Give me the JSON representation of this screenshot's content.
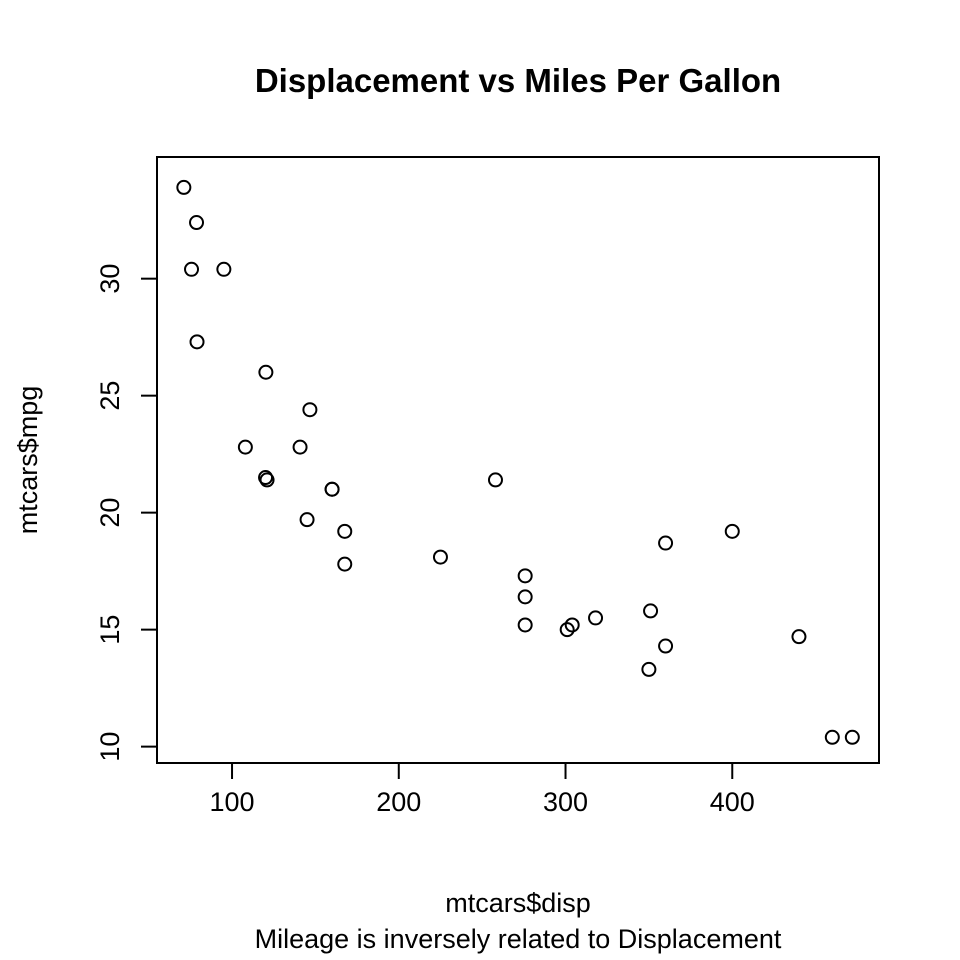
{
  "chart_data": {
    "type": "scatter",
    "title": "Displacement vs Miles Per Gallon",
    "xlabel": "mtcars$disp",
    "ylabel": "mtcars$mpg",
    "subtitle": "Mileage is inversely related to Displacement",
    "xlim": [
      55,
      488
    ],
    "ylim": [
      9.3,
      35.2
    ],
    "xticks": [
      100,
      200,
      300,
      400
    ],
    "yticks": [
      10,
      15,
      20,
      25,
      30
    ],
    "xtick_labels": [
      "100",
      "200",
      "300",
      "400"
    ],
    "ytick_labels": [
      "10",
      "15",
      "20",
      "25",
      "30"
    ],
    "grid": false,
    "point_color": "#000000",
    "points": [
      {
        "x": 160,
        "y": 21.0
      },
      {
        "x": 160,
        "y": 21.0
      },
      {
        "x": 108,
        "y": 22.8
      },
      {
        "x": 258,
        "y": 21.4
      },
      {
        "x": 360,
        "y": 18.7
      },
      {
        "x": 225,
        "y": 18.1
      },
      {
        "x": 360,
        "y": 14.3
      },
      {
        "x": 146.7,
        "y": 24.4
      },
      {
        "x": 140.8,
        "y": 22.8
      },
      {
        "x": 167.6,
        "y": 19.2
      },
      {
        "x": 167.6,
        "y": 17.8
      },
      {
        "x": 275.8,
        "y": 16.4
      },
      {
        "x": 275.8,
        "y": 17.3
      },
      {
        "x": 275.8,
        "y": 15.2
      },
      {
        "x": 472,
        "y": 10.4
      },
      {
        "x": 460,
        "y": 10.4
      },
      {
        "x": 440,
        "y": 14.7
      },
      {
        "x": 78.7,
        "y": 32.4
      },
      {
        "x": 75.7,
        "y": 30.4
      },
      {
        "x": 71.1,
        "y": 33.9
      },
      {
        "x": 120.1,
        "y": 21.5
      },
      {
        "x": 318,
        "y": 15.5
      },
      {
        "x": 304,
        "y": 15.2
      },
      {
        "x": 350,
        "y": 13.3
      },
      {
        "x": 400,
        "y": 19.2
      },
      {
        "x": 79,
        "y": 27.3
      },
      {
        "x": 120.3,
        "y": 26.0
      },
      {
        "x": 95.1,
        "y": 30.4
      },
      {
        "x": 351,
        "y": 15.8
      },
      {
        "x": 145,
        "y": 19.7
      },
      {
        "x": 301,
        "y": 15.0
      },
      {
        "x": 121,
        "y": 21.4
      }
    ]
  }
}
